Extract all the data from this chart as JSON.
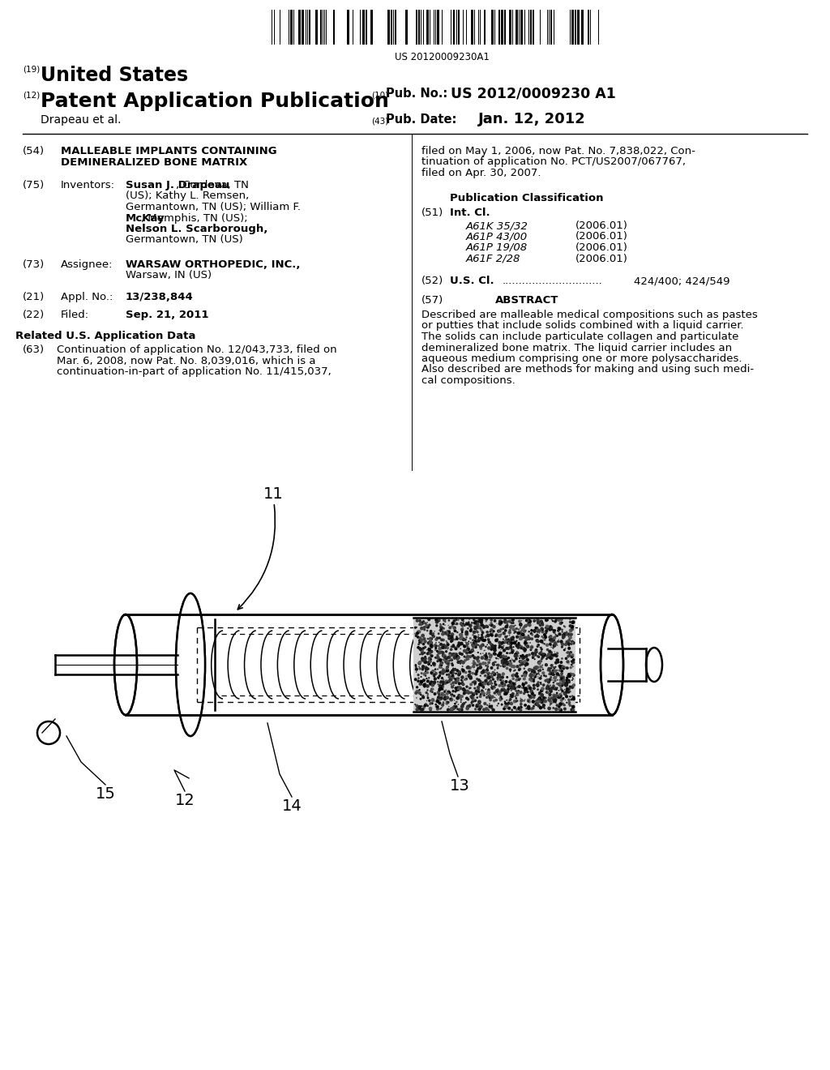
{
  "background_color": "#ffffff",
  "barcode_text": "US 20120009230A1",
  "header": {
    "tag19": "(19)",
    "united_states": "United States",
    "tag12": "(12)",
    "patent_app_pub": "Patent Application Publication",
    "tag10": "(10)",
    "pub_no_label": "Pub. No.:",
    "pub_no_value": "US 2012/0009230 A1",
    "inventors_line": "Drapeau et al.",
    "tag43": "(43)",
    "pub_date_label": "Pub. Date:",
    "pub_date_value": "Jan. 12, 2012"
  },
  "left_col": {
    "title_line1": "MALLEABLE IMPLANTS CONTAINING",
    "title_line2": "DEMINERALIZED BONE MATRIX",
    "appl_value": "13/238,844",
    "filed_value": "Sep. 21, 2011",
    "related_header": "Related U.S. Application Data",
    "related_text": "Continuation of application No. 12/043,733, filed on\nMar. 6, 2008, now Pat. No. 8,039,016, which is a\ncontinuation-in-part of application No. 11/415,037,"
  },
  "right_col": {
    "continuation_text": "filed on May 1, 2006, now Pat. No. 7,838,022, Con-\ntinuation of application No. PCT/US2007/067767,\nfiled on Apr. 30, 2007.",
    "pub_class_header": "Publication Classification",
    "classifications": [
      [
        "A61K 35/32",
        "(2006.01)"
      ],
      [
        "A61P 43/00",
        "(2006.01)"
      ],
      [
        "A61P 19/08",
        "(2006.01)"
      ],
      [
        "A61F 2/28",
        "(2006.01)"
      ]
    ],
    "us_cl_value": "424/400; 424/549",
    "abstract_header": "ABSTRACT",
    "abstract_text": "Described are malleable medical compositions such as pastes\nor putties that include solids combined with a liquid carrier.\nThe solids can include particulate collagen and particulate\ndemineralized bone matrix. The liquid carrier includes an\naqueous medium comprising one or more polysaccharides.\nAlso described are methods for making and using such medi-\ncal compositions."
  },
  "figure": {
    "label11": "11",
    "label12": "12",
    "label13": "13",
    "label14": "14",
    "label15": "15"
  }
}
